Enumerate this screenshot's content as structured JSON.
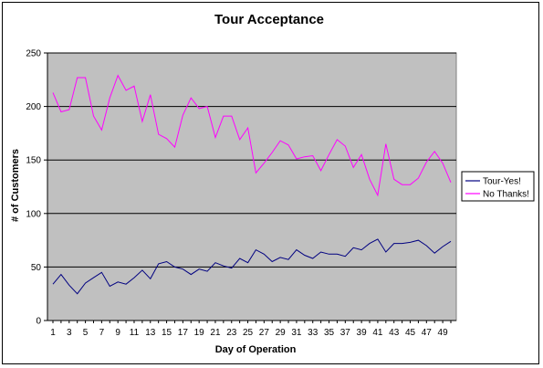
{
  "chart_data": {
    "type": "line",
    "title": "Tour Acceptance",
    "xlabel": "Day of Operation",
    "ylabel": "# of Customers",
    "ylim": [
      0,
      250
    ],
    "yticks": [
      0,
      50,
      100,
      150,
      200,
      250
    ],
    "xticks": [
      1,
      3,
      5,
      7,
      9,
      11,
      13,
      15,
      17,
      19,
      21,
      23,
      25,
      27,
      29,
      31,
      33,
      35,
      37,
      39,
      41,
      43,
      45,
      47,
      49
    ],
    "x": [
      1,
      2,
      3,
      4,
      5,
      6,
      7,
      8,
      9,
      10,
      11,
      12,
      13,
      14,
      15,
      16,
      17,
      18,
      19,
      20,
      21,
      22,
      23,
      24,
      25,
      26,
      27,
      28,
      29,
      30,
      31,
      32,
      33,
      34,
      35,
      36,
      37,
      38,
      39,
      40,
      41,
      42,
      43,
      44,
      45,
      46,
      47,
      48,
      49,
      50
    ],
    "grid": "horizontal",
    "plot_background": "#c0c0c0",
    "legend_position": "right",
    "series": [
      {
        "name": "Tour-Yes!",
        "color": "#000080",
        "values": [
          34,
          43,
          33,
          25,
          35,
          40,
          45,
          32,
          36,
          34,
          40,
          47,
          39,
          53,
          55,
          50,
          48,
          43,
          48,
          46,
          54,
          51,
          49,
          58,
          54,
          66,
          62,
          55,
          59,
          57,
          66,
          61,
          58,
          64,
          62,
          62,
          60,
          68,
          66,
          72,
          76,
          64,
          72,
          72,
          73,
          75,
          70,
          63,
          69,
          74
        ]
      },
      {
        "name": "No Thanks!",
        "color": "#ff00ff",
        "values": [
          213,
          195,
          197,
          227,
          227,
          191,
          178,
          208,
          229,
          215,
          219,
          186,
          211,
          174,
          170,
          162,
          192,
          208,
          198,
          200,
          171,
          191,
          191,
          169,
          180,
          138,
          147,
          157,
          168,
          164,
          151,
          153,
          154,
          140,
          155,
          169,
          163,
          143,
          155,
          132,
          117,
          165,
          132,
          127,
          127,
          133,
          148,
          158,
          147,
          129
        ]
      }
    ]
  }
}
